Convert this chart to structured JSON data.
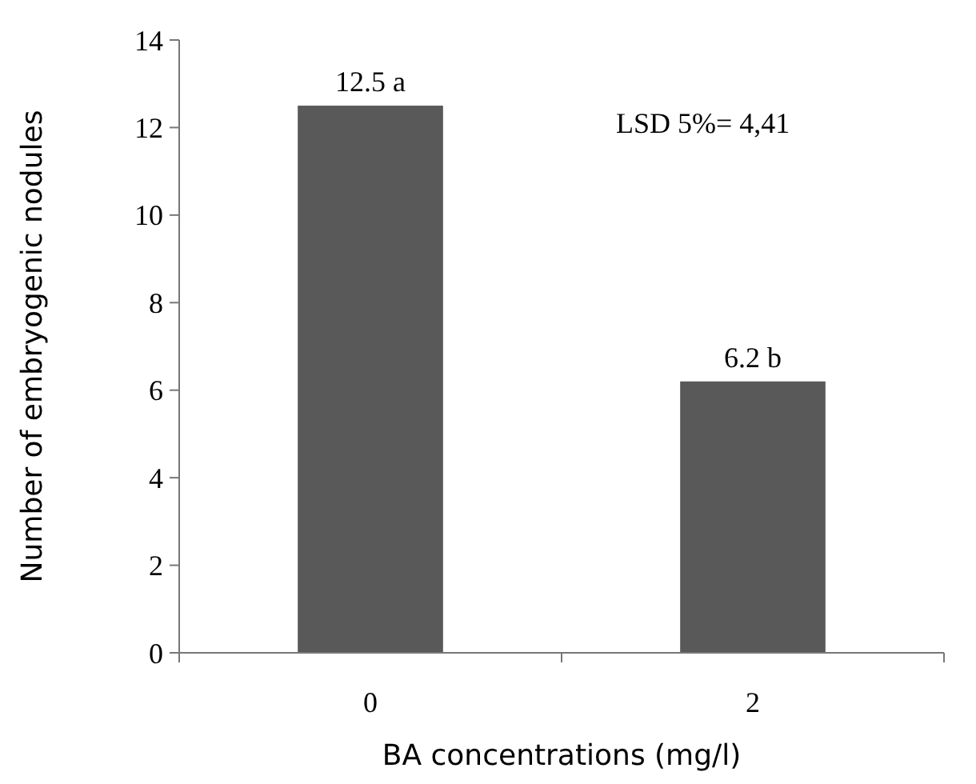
{
  "chart_data": {
    "type": "bar",
    "xlabel": "BA concentrations (mg/l)",
    "ylabel": "Number of embryogenic nodules",
    "categories": [
      "0",
      "2"
    ],
    "values": [
      12.5,
      6.2
    ],
    "value_labels": [
      "12.5 a",
      "6.2 b"
    ],
    "color": "#595959",
    "ylim": [
      0,
      14
    ],
    "yticks": [
      0,
      2,
      4,
      6,
      8,
      10,
      12,
      14
    ],
    "annotations": [
      "LSD 5%= 4,41"
    ],
    "grid": false
  }
}
